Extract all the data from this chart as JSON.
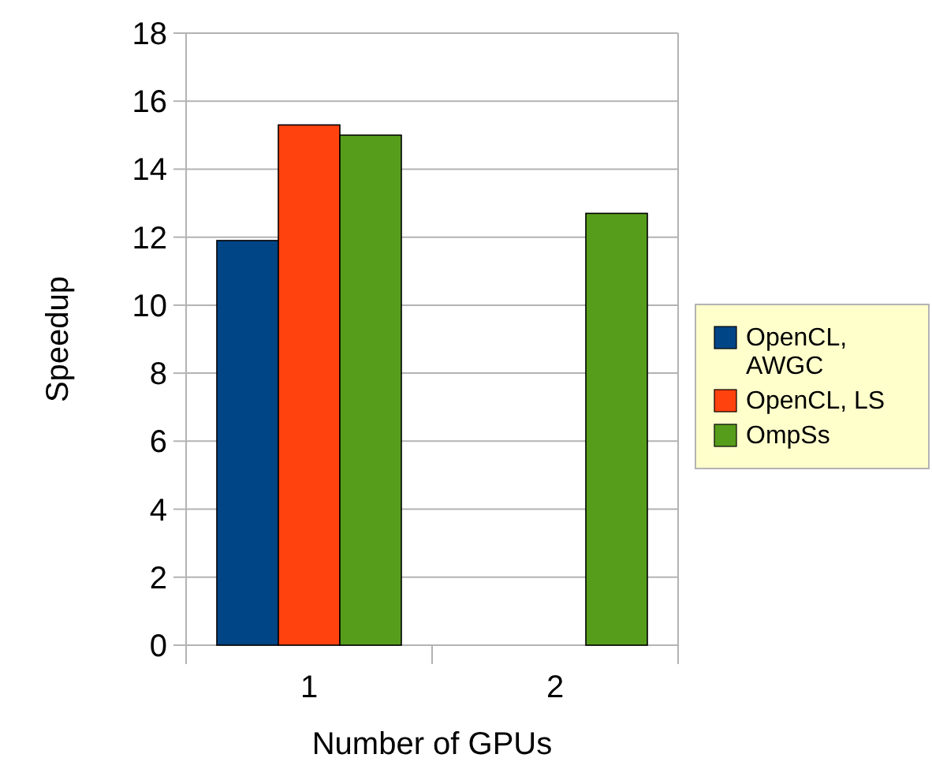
{
  "chart_data": {
    "type": "bar",
    "xlabel": "Number of GPUs",
    "ylabel": "Speedup",
    "categories": [
      "1",
      "2"
    ],
    "series": [
      {
        "name": "OpenCL, AWGC",
        "color": "#004586",
        "values": [
          11.9,
          null
        ]
      },
      {
        "name": "OpenCL, LS",
        "color": "#ff420e",
        "values": [
          15.3,
          null
        ]
      },
      {
        "name": "OmpSs",
        "color": "#579d1c",
        "values": [
          15.0,
          12.7
        ]
      }
    ],
    "ylim": [
      0,
      18
    ],
    "yticks": [
      0,
      2,
      4,
      6,
      8,
      10,
      12,
      14,
      16,
      18
    ],
    "grid": "y",
    "legend": "right"
  }
}
